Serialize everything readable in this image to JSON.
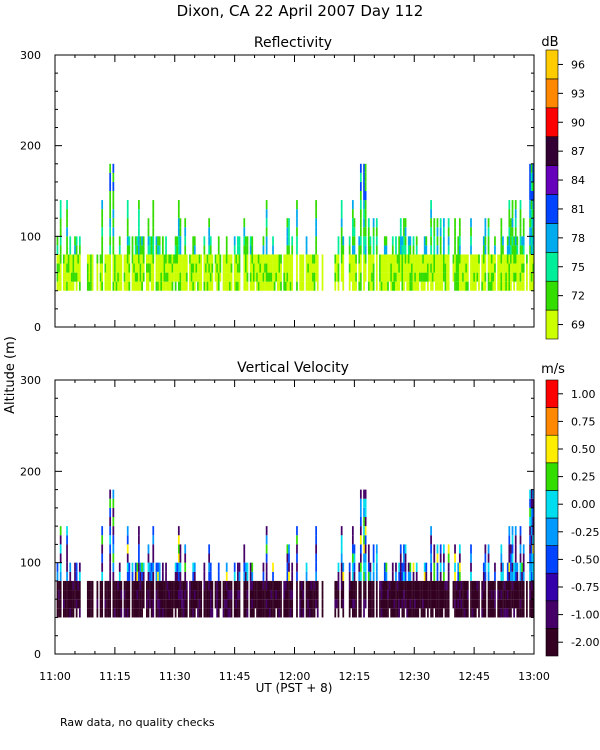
{
  "figure": {
    "title": "Dixon, CA 22 April 2007  Day 112",
    "ylabel": "Altitude (m)",
    "xlabel": "UT  (PST + 8)",
    "footnote": "Raw data, no quality checks",
    "xticks": [
      "11:00",
      "11:15",
      "11:30",
      "11:45",
      "12:00",
      "12:15",
      "12:30",
      "12:45",
      "13:00"
    ]
  },
  "chart_data": [
    {
      "type": "heatmap",
      "title": "Reflectivity",
      "xlabel": "UT  (PST + 8)",
      "ylabel": "Altitude (m)",
      "x_range_minutes_after_1100": [
        0,
        120
      ],
      "ylim": [
        0,
        300
      ],
      "yticks": [
        "0",
        "100",
        "200",
        "300"
      ],
      "colorbar": {
        "unit": "dB",
        "labels": [
          "69",
          "72",
          "75",
          "78",
          "81",
          "84",
          "87",
          "90",
          "93",
          "96"
        ],
        "colors": [
          "#ccff00",
          "#33dd00",
          "#00ee99",
          "#00aaee",
          "#0044ff",
          "#6600bb",
          "#330033",
          "#ff0000",
          "#ff8800",
          "#ffcc00"
        ]
      },
      "features": {
        "main_layer_altitude_m": [
          40,
          80
        ],
        "typical_plume_top_m": 100,
        "max_plume_top_m": 180,
        "peak_times_minutes_after_1100": [
          14,
          77,
          119
        ]
      }
    },
    {
      "type": "heatmap",
      "title": "Vertical Velocity",
      "xlabel": "UT  (PST + 8)",
      "ylabel": "Altitude (m)",
      "x_range_minutes_after_1100": [
        0,
        120
      ],
      "ylim": [
        0,
        300
      ],
      "yticks": [
        "0",
        "100",
        "200",
        "300"
      ],
      "colorbar": {
        "unit": "m/s",
        "labels": [
          "-2.00",
          "-1.00",
          "-0.75",
          "-0.50",
          "-0.25",
          "0.00",
          "0.25",
          "0.50",
          "0.75",
          "1.00"
        ],
        "colors": [
          "#330022",
          "#440066",
          "#3300aa",
          "#0044ff",
          "#0099ff",
          "#00ddee",
          "#33dd00",
          "#ffee00",
          "#ff8800",
          "#ff0000"
        ]
      },
      "features": {
        "main_layer_altitude_m": [
          40,
          80
        ],
        "typical_plume_top_m": 100,
        "max_plume_top_m": 180,
        "dominant_velocity_ms": -2.0
      }
    }
  ]
}
